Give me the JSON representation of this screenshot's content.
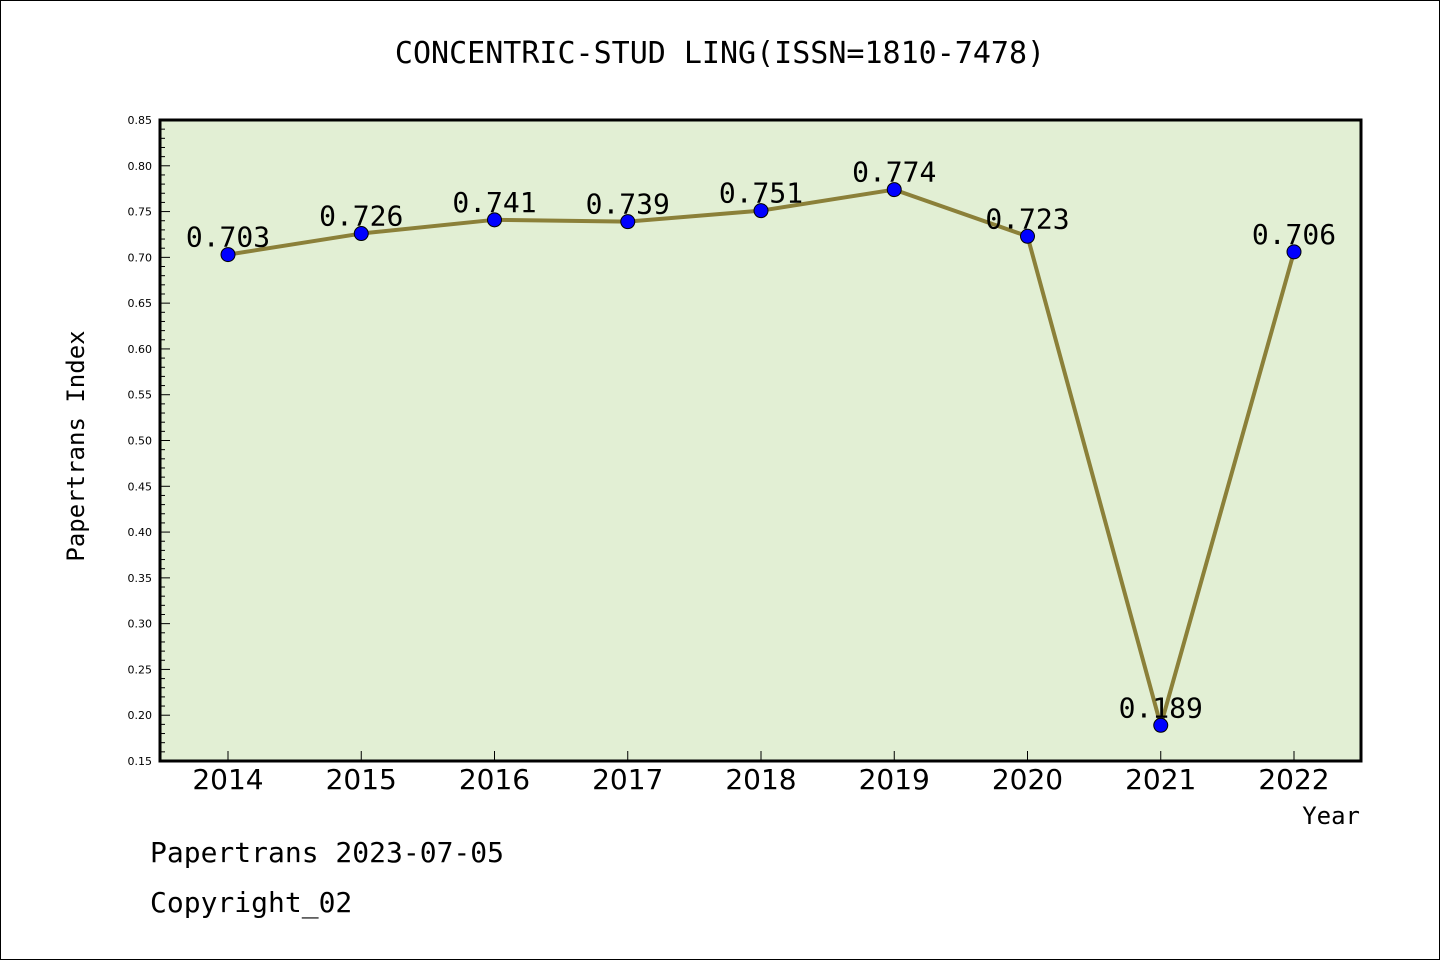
{
  "chart_data": {
    "type": "line",
    "title": "CONCENTRIC-STUD LING(ISSN=1810-7478)",
    "xlabel": "Year",
    "ylabel": "Papertrans Index",
    "categories": [
      "2014",
      "2015",
      "2016",
      "2017",
      "2018",
      "2019",
      "2020",
      "2021",
      "2022"
    ],
    "values": [
      0.703,
      0.726,
      0.741,
      0.739,
      0.751,
      0.774,
      0.723,
      0.189,
      0.706
    ],
    "data_labels": [
      "0.703",
      "0.726",
      "0.741",
      "0.739",
      "0.751",
      "0.774",
      "0.723",
      "0.189",
      "0.706"
    ],
    "ylim": [
      0.15,
      0.85
    ],
    "yticks": [
      "0.15",
      "0.20",
      "0.25",
      "0.30",
      "0.35",
      "0.40",
      "0.45",
      "0.50",
      "0.55",
      "0.60",
      "0.65",
      "0.70",
      "0.75",
      "0.80",
      "0.85"
    ],
    "grid": false,
    "colors": {
      "plot_background": "#e2efd4",
      "line": "#8b8039",
      "marker": "#0000ff"
    }
  },
  "footer": {
    "line1": "Papertrans 2023-07-05",
    "line2": "Copyright_02"
  }
}
